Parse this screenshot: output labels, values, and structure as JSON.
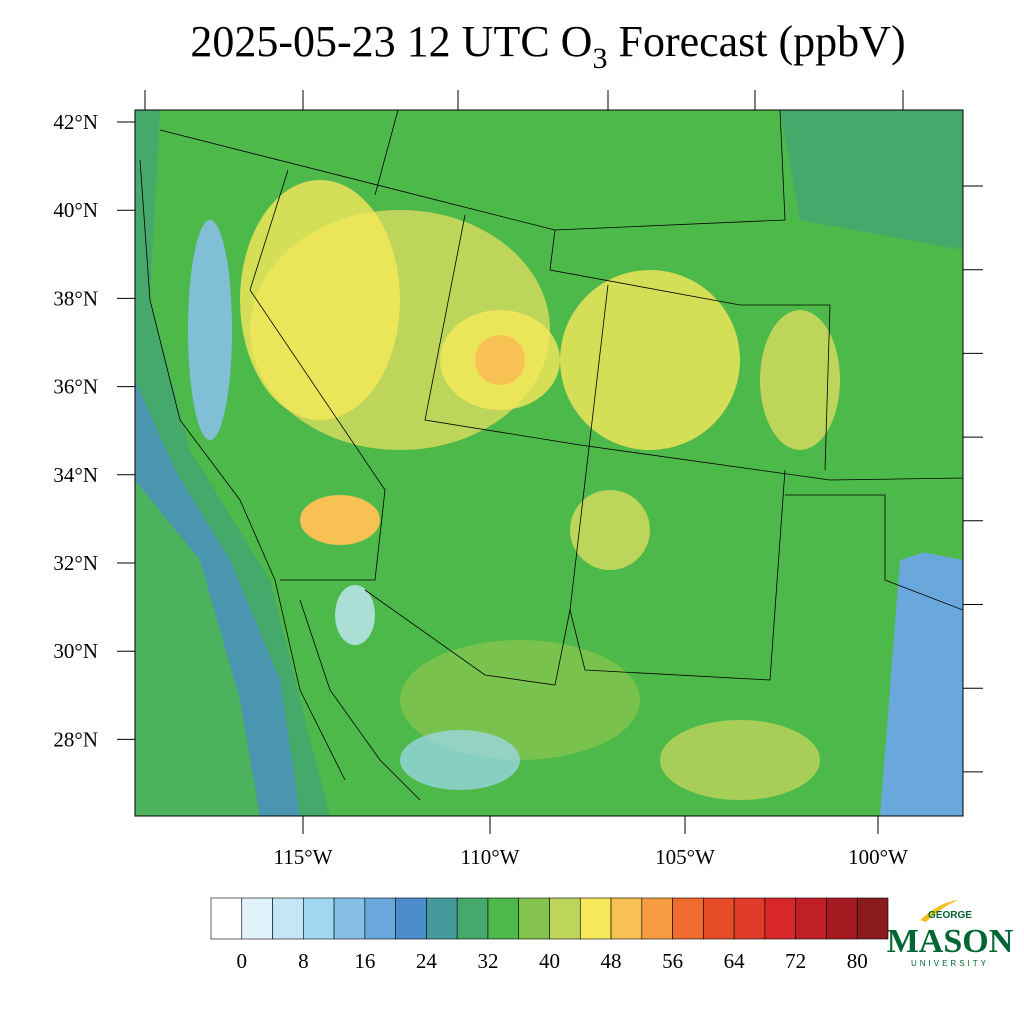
{
  "title_main": "2025-05-23 12 UTC O",
  "title_sub": "3",
  "title_end": " Forecast (ppbV)",
  "latitude_labels": [
    "42°N",
    "40°N",
    "38°N",
    "36°N",
    "34°N",
    "32°N",
    "30°N",
    "28°N"
  ],
  "longitude_labels": [
    "115°W",
    "110°W",
    "105°W",
    "100°W"
  ],
  "colorbar": {
    "colors": [
      "#ffffff",
      "#e1f3fb",
      "#c3e7f7",
      "#a0d8f2",
      "#86c0e6",
      "#6aa8dc",
      "#4b8dcc",
      "#449a9a",
      "#46a96c",
      "#4db94a",
      "#84c44e",
      "#bed55b",
      "#f6e85a",
      "#f8c153",
      "#f69b40",
      "#f06c2e",
      "#e74c29",
      "#de3b2a",
      "#d7272a",
      "#c01f27",
      "#a61b22",
      "#8b1a1c"
    ],
    "ticks": [
      0,
      8,
      16,
      24,
      32,
      40,
      48,
      56,
      64,
      72,
      80
    ]
  },
  "logo": {
    "top": "GEORGE",
    "main": "MASON",
    "bottom": "UNIVERSITY"
  }
}
